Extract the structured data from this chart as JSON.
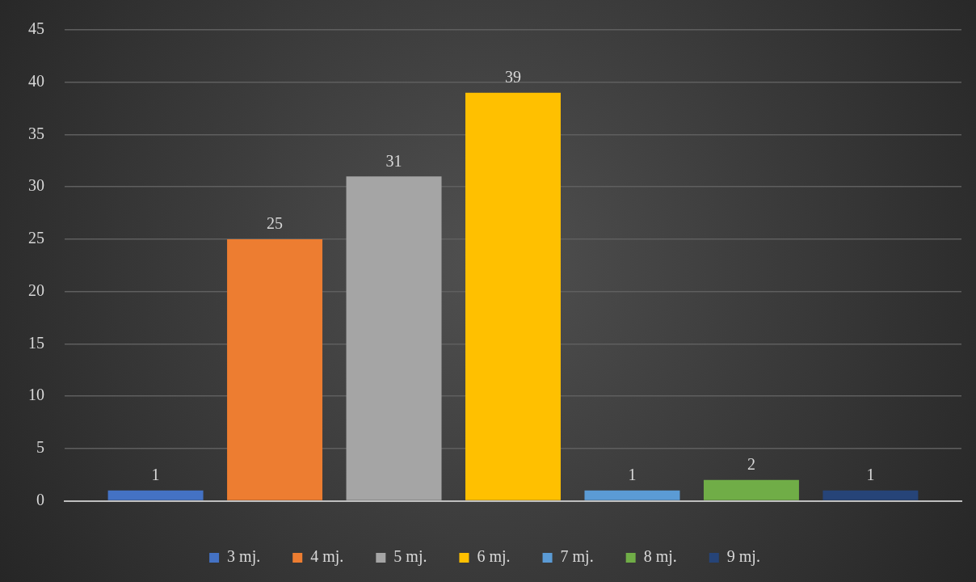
{
  "chart_data": {
    "type": "bar",
    "categories": [
      null
    ],
    "series": [
      {
        "name": "3 mj.",
        "color": "#4472c4",
        "values": [
          1
        ]
      },
      {
        "name": "4 mj.",
        "color": "#ed7d31",
        "values": [
          25
        ]
      },
      {
        "name": "5 mj.",
        "color": "#a5a5a5",
        "values": [
          31
        ]
      },
      {
        "name": "6 mj.",
        "color": "#ffc000",
        "values": [
          39
        ]
      },
      {
        "name": "7 mj.",
        "color": "#5b9bd5",
        "values": [
          1
        ]
      },
      {
        "name": "8 mj.",
        "color": "#70ad47",
        "values": [
          2
        ]
      },
      {
        "name": "9 mj.",
        "color": "#264478",
        "values": [
          1
        ]
      }
    ],
    "ylim": [
      0,
      45
    ],
    "yticks": [
      0,
      5,
      10,
      15,
      20,
      25,
      30,
      35,
      40,
      45
    ],
    "grid": "y",
    "legend": "bottom",
    "data_labels": true
  }
}
